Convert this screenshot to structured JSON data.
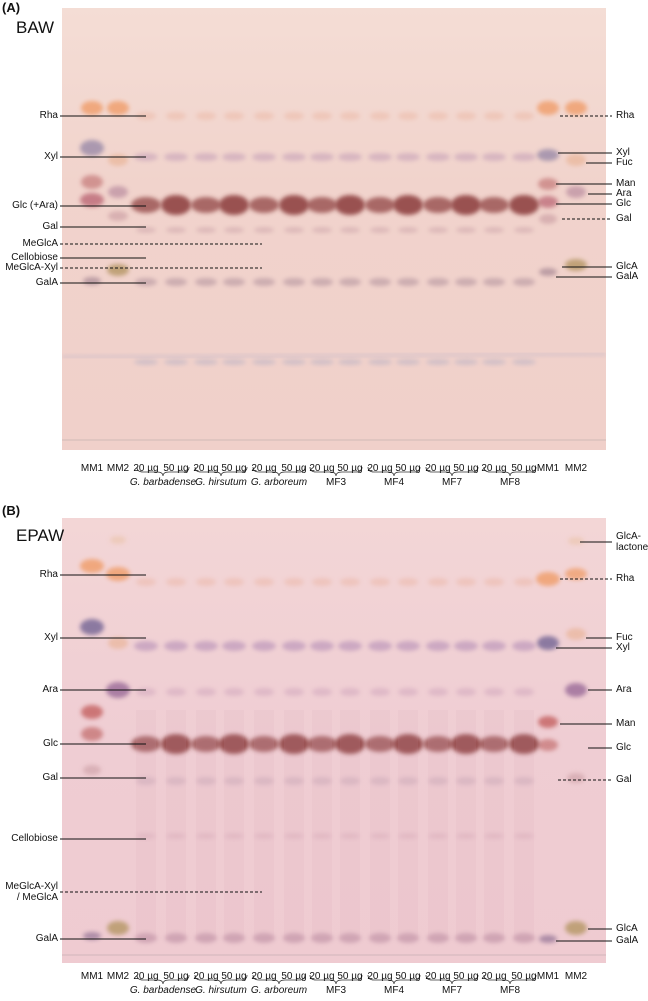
{
  "panels": [
    {
      "id": "A",
      "panel_label": "(A)",
      "solvent": "BAW",
      "left_labels": [
        "Rha",
        "Xyl",
        "Glc (+Ara)",
        "Gal",
        "MeGlcA",
        "Cellobiose",
        "MeGlcA-Xyl",
        "GalA"
      ],
      "right_labels": [
        "Rha",
        "Xyl",
        "Fuc",
        "Man",
        "Ara",
        "Glc",
        "Gal",
        "GlcA",
        "GalA"
      ],
      "lane_labels": [
        "MM1",
        "MM2",
        "20 µg",
        "50 µg",
        "20 µg",
        "50 µg",
        "20 µg",
        "50 µg",
        "20 µg",
        "50 µg",
        "20 µg",
        "50 µg",
        "20 µg",
        "50 µg",
        "20 µg",
        "50 µg",
        "MM1",
        "MM2"
      ],
      "sample_labels": [
        "G. barbadense",
        "G. hirsutum",
        "G. arboreum",
        "MF3",
        "MF4",
        "MF7",
        "MF8"
      ]
    },
    {
      "id": "B",
      "panel_label": "(B)",
      "solvent": "EPAW",
      "left_labels": [
        "Rha",
        "Xyl",
        "Ara",
        "Glc",
        "Gal",
        "Cellobiose",
        "MeGlcA-Xyl\n/ MeGlcA",
        "GalA"
      ],
      "right_labels": [
        "GlcA-\nlactone",
        "Rha",
        "Fuc",
        "Xyl",
        "Ara",
        "Man",
        "Glc",
        "Gal",
        "GlcA",
        "GalA"
      ],
      "lane_labels": [
        "MM1",
        "MM2",
        "20 µg",
        "50 µg",
        "20 µg",
        "50 µg",
        "20 µg",
        "50 µg",
        "20 µg",
        "50 µg",
        "20 µg",
        "50 µg",
        "20 µg",
        "50 µg",
        "20 µg",
        "50 µg",
        "MM1",
        "MM2"
      ],
      "sample_labels": [
        "G. barbadense",
        "G. hirsutum",
        "G. arboreum",
        "MF3",
        "MF4",
        "MF7",
        "MF8"
      ]
    }
  ],
  "colors": {
    "plate_a": "#f2d6cf",
    "plate_b": "#f0cfd3",
    "rha": "#f0a070",
    "xyl": "#9a8aa8",
    "glc": "#8a3a3a",
    "glca": "#b89a6a",
    "ara": "#b08098"
  }
}
